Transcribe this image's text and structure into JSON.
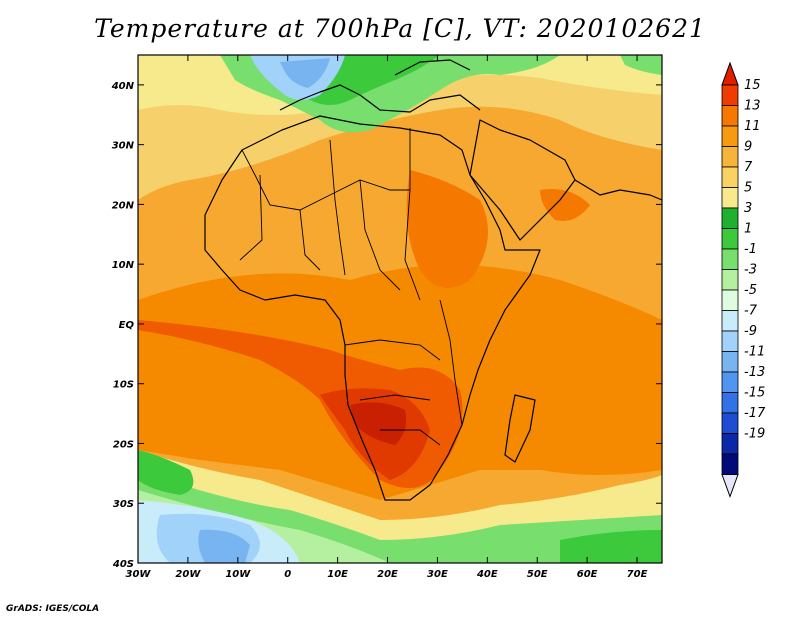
{
  "title": "Temperature at 700hPa [C], VT: 2020102621",
  "credit": "GrADS: IGES/COLA",
  "map": {
    "lon_labels": [
      "30W",
      "20W",
      "10W",
      "0",
      "10E",
      "20E",
      "30E",
      "40E",
      "50E",
      "60E",
      "70E"
    ],
    "lat_labels": [
      "40N",
      "30N",
      "20N",
      "10N",
      "EQ",
      "10S",
      "20S",
      "30S",
      "40S"
    ],
    "lon_range": [
      -30,
      75
    ],
    "lat_range": [
      -40,
      45
    ]
  },
  "colorbar": {
    "labels": [
      "15",
      "13",
      "11",
      "9",
      "7",
      "5",
      "3",
      "1",
      "-1",
      "-3",
      "-5",
      "-7",
      "-9",
      "-11",
      "-13",
      "-15",
      "-17",
      "-19"
    ],
    "colors": [
      "#e01e00",
      "#f03c00",
      "#f57800",
      "#f79a10",
      "#f7b43c",
      "#fad264",
      "#f6ea8c",
      "#20b030",
      "#3cca3c",
      "#78de6e",
      "#b4f0a0",
      "#e0fce0",
      "#c8ecfa",
      "#a0d2fa",
      "#78b4f0",
      "#5096f0",
      "#3272e6",
      "#1e4cd2",
      "#0a28a8",
      "#000a78"
    ],
    "top_color": "#e01e00",
    "bottom_color": "#e6e6fa"
  }
}
